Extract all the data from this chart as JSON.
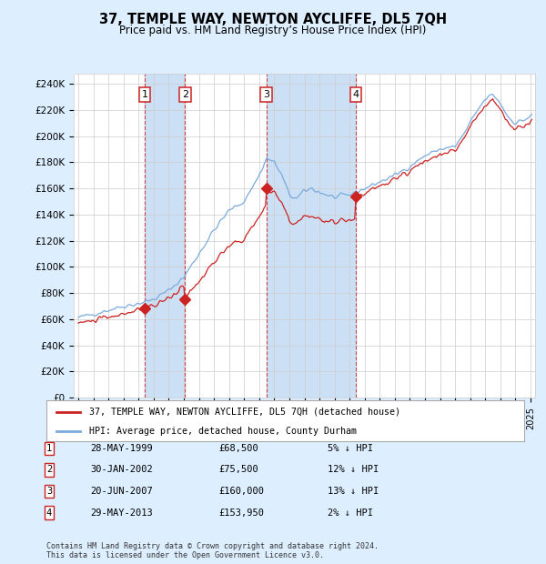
{
  "title": "37, TEMPLE WAY, NEWTON AYCLIFFE, DL5 7QH",
  "subtitle": "Price paid vs. HM Land Registry’s House Price Index (HPI)",
  "yticks": [
    0,
    20000,
    40000,
    60000,
    80000,
    100000,
    120000,
    140000,
    160000,
    180000,
    200000,
    220000,
    240000
  ],
  "ytick_labels": [
    "£0",
    "£20K",
    "£40K",
    "£60K",
    "£80K",
    "£100K",
    "£120K",
    "£140K",
    "£160K",
    "£180K",
    "£200K",
    "£220K",
    "£240K"
  ],
  "ylim": [
    0,
    248000
  ],
  "xlim_start": 1994.7,
  "xlim_end": 2025.3,
  "sale_dates": [
    1999.41,
    2002.08,
    2007.47,
    2013.41
  ],
  "sale_prices": [
    68500,
    75500,
    160000,
    153950
  ],
  "sale_labels": [
    "1",
    "2",
    "3",
    "4"
  ],
  "hpi_color": "#7aaadd",
  "price_color": "#cc2222",
  "dashed_color": "#cc3333",
  "shade_color": "#cce0f5",
  "background_color": "#ddeeff",
  "plot_bg_color": "#ffffff",
  "grid_color": "#cccccc",
  "legend_label_price": "37, TEMPLE WAY, NEWTON AYCLIFFE, DL5 7QH (detached house)",
  "legend_label_hpi": "HPI: Average price, detached house, County Durham",
  "table_entries": [
    {
      "num": "1",
      "date": "28-MAY-1999",
      "price": "£68,500",
      "pct": "5% ↓ HPI"
    },
    {
      "num": "2",
      "date": "30-JAN-2002",
      "price": "£75,500",
      "pct": "12% ↓ HPI"
    },
    {
      "num": "3",
      "date": "20-JUN-2007",
      "price": "£160,000",
      "pct": "13% ↓ HPI"
    },
    {
      "num": "4",
      "date": "29-MAY-2013",
      "price": "£153,950",
      "pct": "2% ↓ HPI"
    }
  ],
  "footnote": "Contains HM Land Registry data © Crown copyright and database right 2024.\nThis data is licensed under the Open Government Licence v3.0."
}
